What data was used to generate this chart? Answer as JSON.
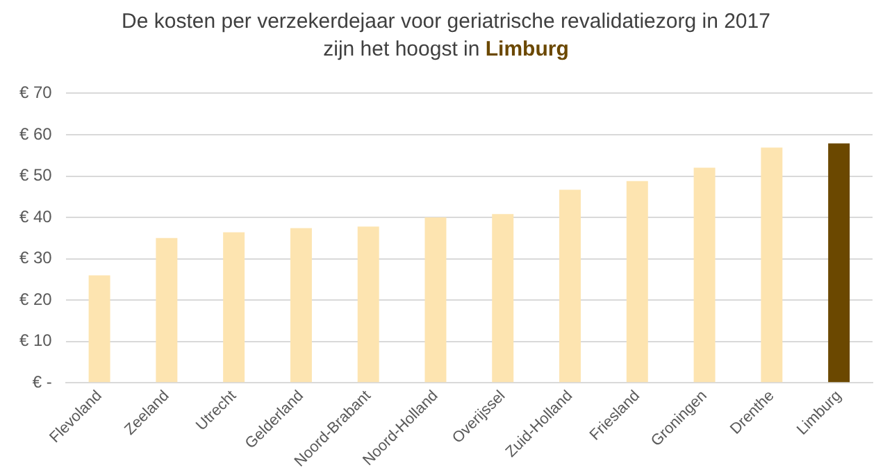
{
  "chart_data": {
    "type": "bar",
    "title": "De kosten per verzekerdejaar voor geriatrische revalidatiezorg in 2017\nzijn het hoogst in Limburg",
    "categories": [
      "Flevoland",
      "Zeeland",
      "Utrecht",
      "Gelderland",
      "Noord-Brabant",
      "Noord-Holland",
      "Overijssel",
      "Zuid-Holland",
      "Friesland",
      "Groningen",
      "Drenthe",
      "Limburg"
    ],
    "values": [
      26,
      35,
      36.4,
      37.4,
      37.8,
      40,
      40.8,
      46.7,
      48.8,
      52,
      56.9,
      57.9
    ],
    "colors": [
      "#fde4b0",
      "#fde4b0",
      "#fde4b0",
      "#fde4b0",
      "#fde4b0",
      "#fde4b0",
      "#fde4b0",
      "#fde4b0",
      "#fde4b0",
      "#fde4b0",
      "#fde4b0",
      "#6b4800"
    ],
    "ylim": [
      0,
      70
    ],
    "yticks": [
      {
        "value": 0,
        "label": "€ -"
      },
      {
        "value": 10,
        "label": "€ 10"
      },
      {
        "value": 20,
        "label": "€ 20"
      },
      {
        "value": 30,
        "label": "€ 30"
      },
      {
        "value": 40,
        "label": "€ 40"
      },
      {
        "value": 50,
        "label": "€ 50"
      },
      {
        "value": 60,
        "label": "€ 60"
      },
      {
        "value": 70,
        "label": "€ 70"
      }
    ],
    "grid": "y",
    "legend": false
  }
}
